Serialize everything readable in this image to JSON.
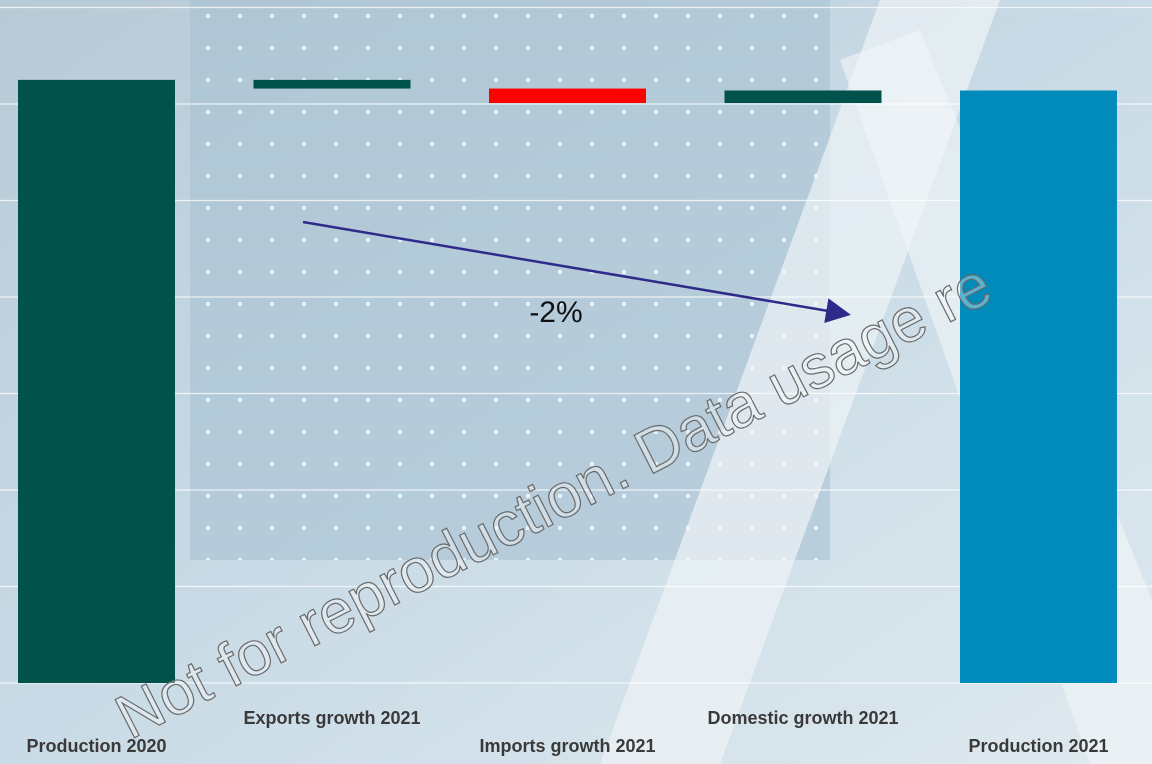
{
  "chart_data": {
    "type": "waterfall",
    "categories": [
      "Production 2020",
      "Exports growth 2021",
      "Imports growth 2021",
      "Domestic growth 2021",
      "Production 2021"
    ],
    "values": [
      6.25,
      -0.09,
      -0.15,
      0.13,
      6.14
    ],
    "measure": [
      "total",
      "relative",
      "relative",
      "relative",
      "total"
    ],
    "colors": [
      "#00524a",
      "#00524a",
      "#ff0000",
      "#00524a",
      "#008bbb"
    ],
    "ylim": [
      0,
      7
    ],
    "yticks": [
      0,
      1,
      2,
      3,
      4,
      5,
      6,
      7
    ],
    "grid": true,
    "annotation": "-2%",
    "watermark": "Not for reproduction. Data usage re"
  }
}
